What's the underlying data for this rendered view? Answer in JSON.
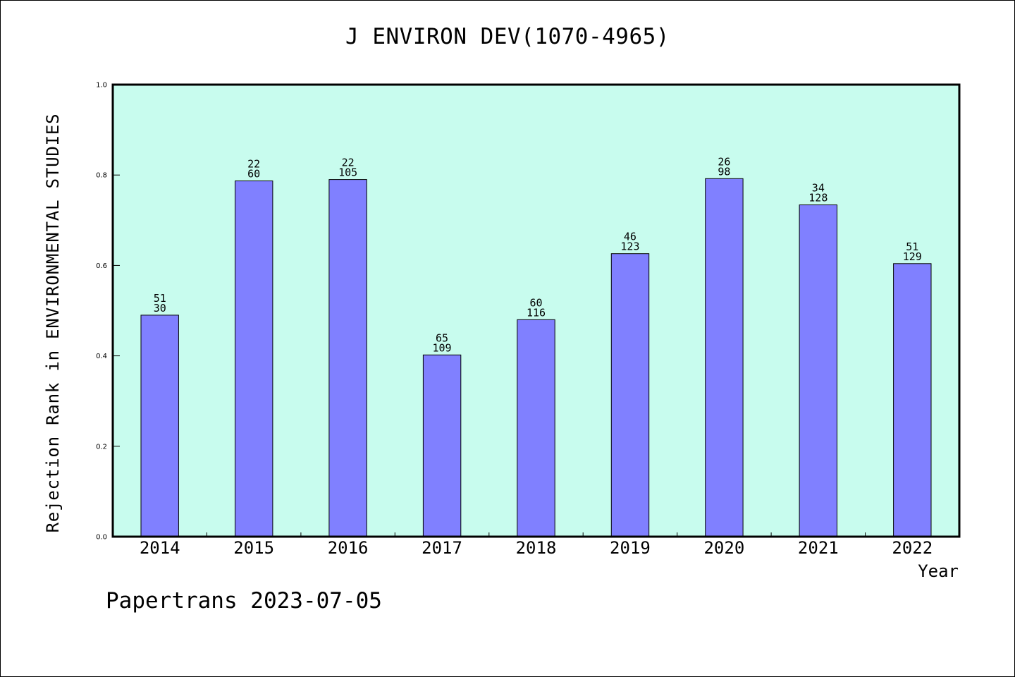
{
  "chart_data": {
    "type": "bar",
    "title": "J ENVIRON DEV(1070-4965)",
    "xlabel": "Year",
    "ylabel": "Rejection Rank in ENVIRONMENTAL STUDIES",
    "ylim": [
      0,
      1.0
    ],
    "yticks": [
      "0.0",
      "0.2",
      "0.4",
      "0.6",
      "0.8",
      "1.0"
    ],
    "grid": false,
    "categories": [
      "2014",
      "2015",
      "2016",
      "2017",
      "2018",
      "2019",
      "2020",
      "2021",
      "2022"
    ],
    "values": [
      0.49,
      0.787,
      0.79,
      0.402,
      0.48,
      0.626,
      0.792,
      0.734,
      0.604
    ],
    "annotations_top": [
      "51",
      "22",
      "22",
      "65",
      "60",
      "46",
      "26",
      "34",
      "51"
    ],
    "annotations_bottom": [
      "30",
      "60",
      "105",
      "109",
      "116",
      "123",
      "98",
      "128",
      "129"
    ],
    "plot_background": "#c8fcee",
    "bar_color": "#8080ff"
  },
  "footer": "Papertrans 2023-07-05"
}
